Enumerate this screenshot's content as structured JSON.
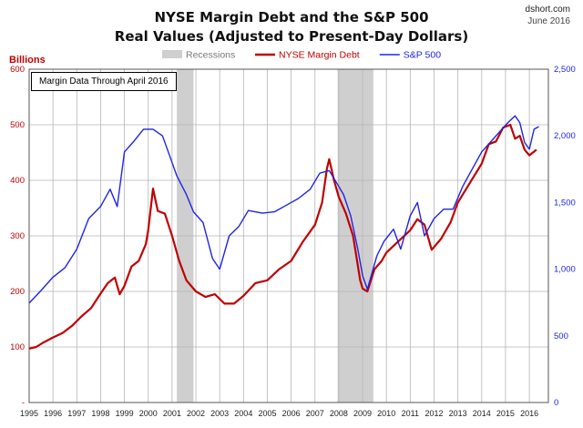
{
  "header": {
    "title_line1": "NYSE Margin Debt and the S&P 500",
    "title_line2": "Real Values (Adjusted to Present-Day Dollars)",
    "source": "dshort.com",
    "date": "June 2016"
  },
  "chart_data": {
    "type": "line",
    "ylabel_left": "Billions",
    "annotation": "Margin Data Through April 2016",
    "legend": {
      "placement": "top-center",
      "items": [
        {
          "label": "Recessions",
          "color": "#cfcfcf",
          "kind": "band"
        },
        {
          "label": "NYSE Margin Debt",
          "color": "#c00000",
          "kind": "line"
        },
        {
          "label": "S&P 500",
          "color": "#1f24e6",
          "kind": "line"
        }
      ]
    },
    "x_ticks": [
      "1995",
      "1996",
      "1997",
      "1998",
      "1999",
      "2000",
      "2001",
      "2002",
      "2003",
      "2004",
      "2005",
      "2006",
      "2007",
      "2008",
      "2009",
      "2010",
      "2011",
      "2012",
      "2013",
      "2014",
      "2015",
      "2016"
    ],
    "xlim": [
      1995,
      2016.8
    ],
    "y_left": {
      "ylim": [
        0,
        600
      ],
      "ticks": [
        0,
        100,
        200,
        300,
        400,
        500,
        600
      ],
      "tick_labels": [
        "-",
        "100",
        "200",
        "300",
        "400",
        "500",
        "600"
      ]
    },
    "y_right": {
      "ylim": [
        0,
        2500
      ],
      "ticks": [
        0,
        500,
        1000,
        1500,
        2000,
        2500
      ],
      "tick_labels": [
        "0",
        "500",
        "1,000",
        "1,500",
        "2,000",
        "2,500"
      ]
    },
    "grid": true,
    "recessions": [
      [
        2001.2,
        2001.9
      ],
      [
        2007.95,
        2009.45
      ]
    ],
    "series": [
      {
        "name": "NYSE Margin Debt",
        "axis": "left",
        "color": "#c00000",
        "x": [
          1995.0,
          1995.3,
          1995.6,
          1996.0,
          1996.4,
          1996.8,
          1997.2,
          1997.6,
          1998.0,
          1998.3,
          1998.6,
          1998.8,
          1999.0,
          1999.3,
          1999.6,
          1999.9,
          2000.0,
          2000.2,
          2000.4,
          2000.7,
          2001.0,
          2001.3,
          2001.6,
          2002.0,
          2002.4,
          2002.8,
          2003.2,
          2003.6,
          2004.0,
          2004.5,
          2005.0,
          2005.5,
          2006.0,
          2006.5,
          2007.0,
          2007.3,
          2007.5,
          2007.6,
          2007.8,
          2008.0,
          2008.3,
          2008.6,
          2008.9,
          2009.0,
          2009.2,
          2009.5,
          2009.8,
          2010.0,
          2010.5,
          2011.0,
          2011.3,
          2011.6,
          2011.9,
          2012.3,
          2012.7,
          2013.0,
          2013.5,
          2014.0,
          2014.3,
          2014.6,
          2014.9,
          2015.2,
          2015.4,
          2015.6,
          2015.8,
          2016.0,
          2016.3
        ],
        "values": [
          97,
          100,
          108,
          117,
          125,
          138,
          155,
          170,
          196,
          215,
          225,
          195,
          210,
          245,
          255,
          285,
          310,
          385,
          345,
          340,
          300,
          255,
          220,
          200,
          190,
          195,
          178,
          178,
          192,
          215,
          220,
          240,
          255,
          290,
          320,
          360,
          420,
          438,
          400,
          370,
          340,
          300,
          220,
          205,
          200,
          240,
          255,
          270,
          290,
          310,
          330,
          320,
          275,
          295,
          325,
          360,
          395,
          430,
          465,
          470,
          495,
          500,
          475,
          480,
          455,
          445,
          455
        ]
      },
      {
        "name": "S&P 500",
        "axis": "right",
        "color": "#1f24e6",
        "x": [
          1995.0,
          1995.5,
          1996.0,
          1996.5,
          1997.0,
          1997.5,
          1998.0,
          1998.4,
          1998.7,
          1999.0,
          1999.4,
          1999.8,
          2000.2,
          2000.6,
          2000.9,
          2001.2,
          2001.6,
          2001.9,
          2002.3,
          2002.7,
          2003.0,
          2003.4,
          2003.8,
          2004.2,
          2004.8,
          2005.3,
          2005.8,
          2006.3,
          2006.8,
          2007.2,
          2007.6,
          2007.9,
          2008.2,
          2008.5,
          2008.8,
          2009.0,
          2009.2,
          2009.6,
          2009.9,
          2010.3,
          2010.6,
          2011.0,
          2011.3,
          2011.6,
          2012.0,
          2012.4,
          2012.8,
          2013.2,
          2013.6,
          2014.0,
          2014.4,
          2014.8,
          2015.1,
          2015.4,
          2015.6,
          2015.8,
          2016.0,
          2016.2,
          2016.4
        ],
        "values": [
          745,
          840,
          940,
          1010,
          1150,
          1380,
          1470,
          1600,
          1470,
          1880,
          1960,
          2050,
          2050,
          2000,
          1850,
          1700,
          1560,
          1430,
          1350,
          1080,
          1000,
          1250,
          1320,
          1440,
          1420,
          1430,
          1480,
          1530,
          1600,
          1720,
          1740,
          1650,
          1560,
          1400,
          1150,
          950,
          850,
          1100,
          1210,
          1300,
          1150,
          1400,
          1500,
          1250,
          1380,
          1450,
          1450,
          1620,
          1750,
          1880,
          1960,
          2040,
          2100,
          2150,
          2100,
          1950,
          1900,
          2050,
          2070
        ]
      }
    ]
  }
}
